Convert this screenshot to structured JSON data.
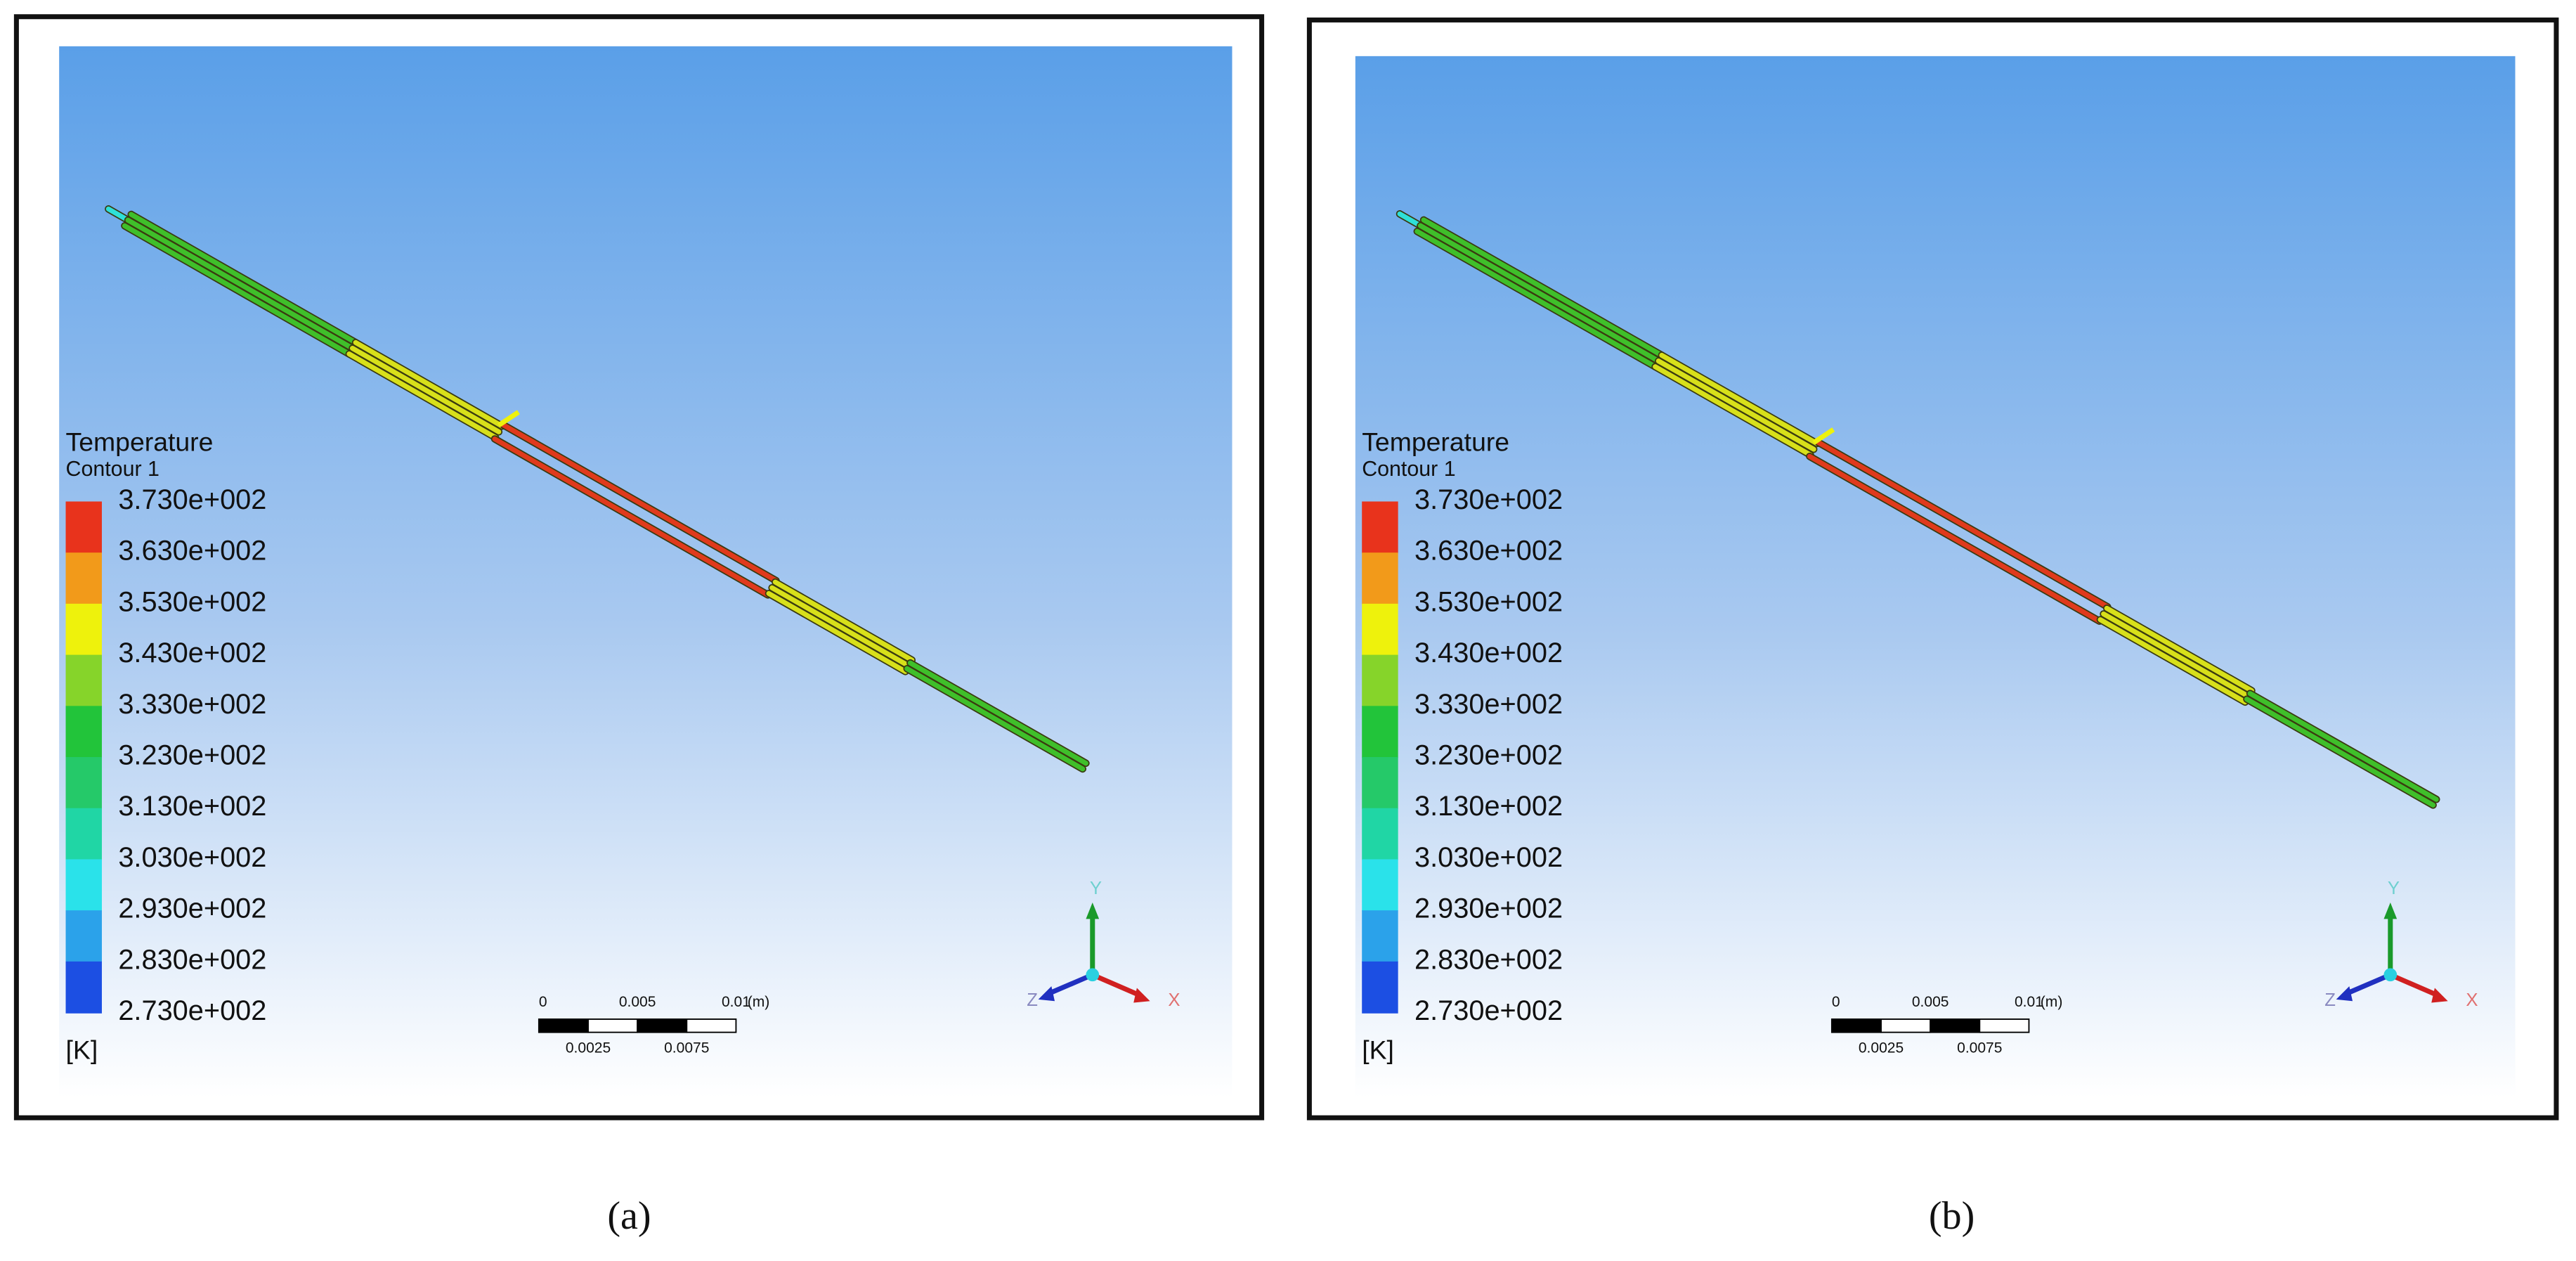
{
  "panels": [
    {
      "caption": "(a)",
      "legend": {
        "title": "Temperature",
        "subtitle": "Contour 1",
        "labels": [
          "3.730e+002",
          "3.630e+002",
          "3.530e+002",
          "3.430e+002",
          "3.330e+002",
          "3.230e+002",
          "3.130e+002",
          "3.030e+002",
          "2.930e+002",
          "2.830e+002",
          "2.730e+002"
        ],
        "unit": "[K]"
      },
      "scale_bar": {
        "labels_top": [
          "0",
          "0.005",
          "0.01"
        ],
        "unit": "(m)",
        "labels_bottom": [
          "0.0025",
          "0.0075"
        ]
      },
      "triad": {
        "y": "Y",
        "z": "Z",
        "x": "X"
      }
    },
    {
      "caption": "(b)",
      "legend": {
        "title": "Temperature",
        "subtitle": "Contour 1",
        "labels": [
          "3.730e+002",
          "3.630e+002",
          "3.530e+002",
          "3.430e+002",
          "3.330e+002",
          "3.230e+002",
          "3.130e+002",
          "3.030e+002",
          "2.930e+002",
          "2.830e+002",
          "2.730e+002"
        ],
        "unit": "[K]"
      },
      "scale_bar": {
        "labels_top": [
          "0",
          "0.005",
          "0.01"
        ],
        "unit": "(m)",
        "labels_bottom": [
          "0.0025",
          "0.0075"
        ]
      },
      "triad": {
        "y": "Y",
        "z": "Z",
        "x": "X"
      }
    }
  ]
}
